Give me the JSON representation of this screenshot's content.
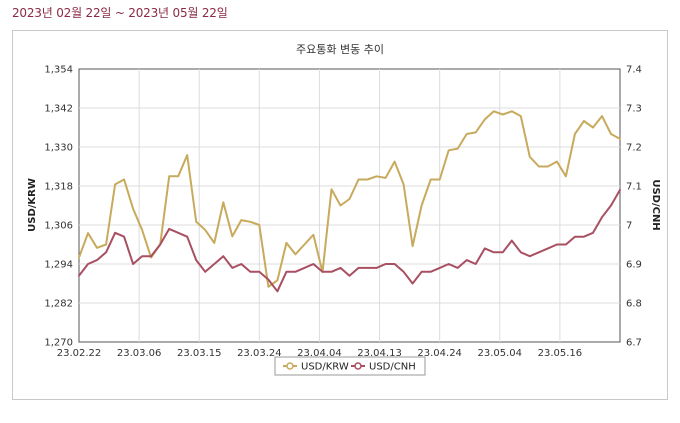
{
  "header": {
    "date_range": "2023년 02월 22일 ~ 2023년 05월 22일"
  },
  "chart_data": {
    "type": "line",
    "title": "주요통화 변동 추이",
    "x_ticks": [
      "23.02.22",
      "23.03.06",
      "23.03.15",
      "23.03.24",
      "23.04.04",
      "23.04.13",
      "23.04.24",
      "23.05.04",
      "23.05.16"
    ],
    "left_axis": {
      "label": "USD/KRW",
      "min": 1270,
      "max": 1354,
      "ticks": [
        "1,270",
        "1,282",
        "1,294",
        "1,306",
        "1,318",
        "1,330",
        "1,342",
        "1,354"
      ]
    },
    "right_axis": {
      "label": "USD/CNH",
      "min": 6.7,
      "max": 7.4,
      "ticks": [
        "6.7",
        "6.8",
        "6.9",
        "7",
        "7.1",
        "7.2",
        "7.3",
        "7.4"
      ]
    },
    "grid": true,
    "legend_position": "bottom",
    "series": [
      {
        "name": "USD/KRW",
        "axis": "left",
        "color": "#c8aa5c",
        "values": [
          1296,
          1303.5,
          1299,
          1300,
          1318.5,
          1320,
          1311,
          1304.5,
          1296,
          1300,
          1321,
          1321,
          1327.5,
          1307,
          1304.5,
          1300.5,
          1313,
          1302.5,
          1307.5,
          1307,
          1306,
          1287,
          1289,
          1300.5,
          1297,
          1300,
          1303,
          1291.5,
          1317,
          1312,
          1314,
          1320,
          1320,
          1321,
          1320.5,
          1325.5,
          1318.5,
          1299.5,
          1312,
          1320,
          1320,
          1329,
          1329.5,
          1334,
          1334.5,
          1338.5,
          1341,
          1340,
          1341,
          1339.5,
          1327,
          1324,
          1324,
          1325.5,
          1321,
          1334,
          1338,
          1336,
          1339.5,
          1334,
          1332.5
        ]
      },
      {
        "name": "USD/CNH",
        "axis": "right",
        "color": "#a84f62",
        "values": [
          6.87,
          6.9,
          6.91,
          6.93,
          6.98,
          6.97,
          6.9,
          6.92,
          6.92,
          6.95,
          6.99,
          6.98,
          6.97,
          6.91,
          6.88,
          6.9,
          6.92,
          6.89,
          6.9,
          6.88,
          6.88,
          6.86,
          6.83,
          6.88,
          6.88,
          6.89,
          6.9,
          6.88,
          6.88,
          6.89,
          6.87,
          6.89,
          6.89,
          6.89,
          6.9,
          6.9,
          6.88,
          6.85,
          6.88,
          6.88,
          6.89,
          6.9,
          6.89,
          6.91,
          6.9,
          6.94,
          6.93,
          6.93,
          6.96,
          6.93,
          6.92,
          6.93,
          6.94,
          6.95,
          6.95,
          6.97,
          6.97,
          6.98,
          7.02,
          7.05,
          7.09
        ]
      }
    ]
  }
}
